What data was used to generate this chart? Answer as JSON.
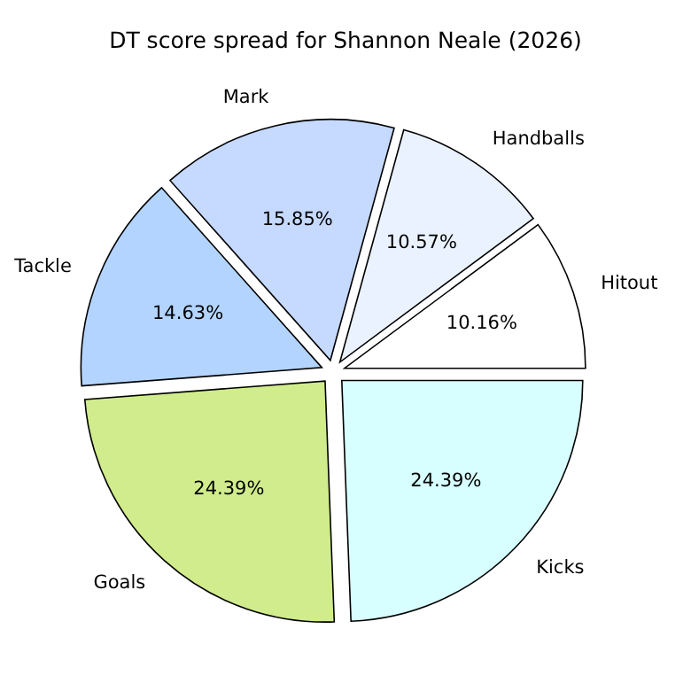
{
  "chart_data": {
    "type": "pie",
    "title": "DT score spread for Shannon Neale (2026)",
    "categories": [
      "Hitout",
      "Handballs",
      "Mark",
      "Tackle",
      "Goals",
      "Kicks"
    ],
    "values": [
      10.16,
      10.57,
      15.85,
      14.63,
      24.39,
      24.39
    ],
    "value_labels": [
      "10.16%",
      "10.57%",
      "15.85%",
      "14.63%",
      "24.39%",
      "24.39%"
    ],
    "colors": [
      "#ffffff",
      "#eaf2ff",
      "#c6d9ff",
      "#b3d4ff",
      "#d0ec8c",
      "#d8ffff"
    ]
  }
}
